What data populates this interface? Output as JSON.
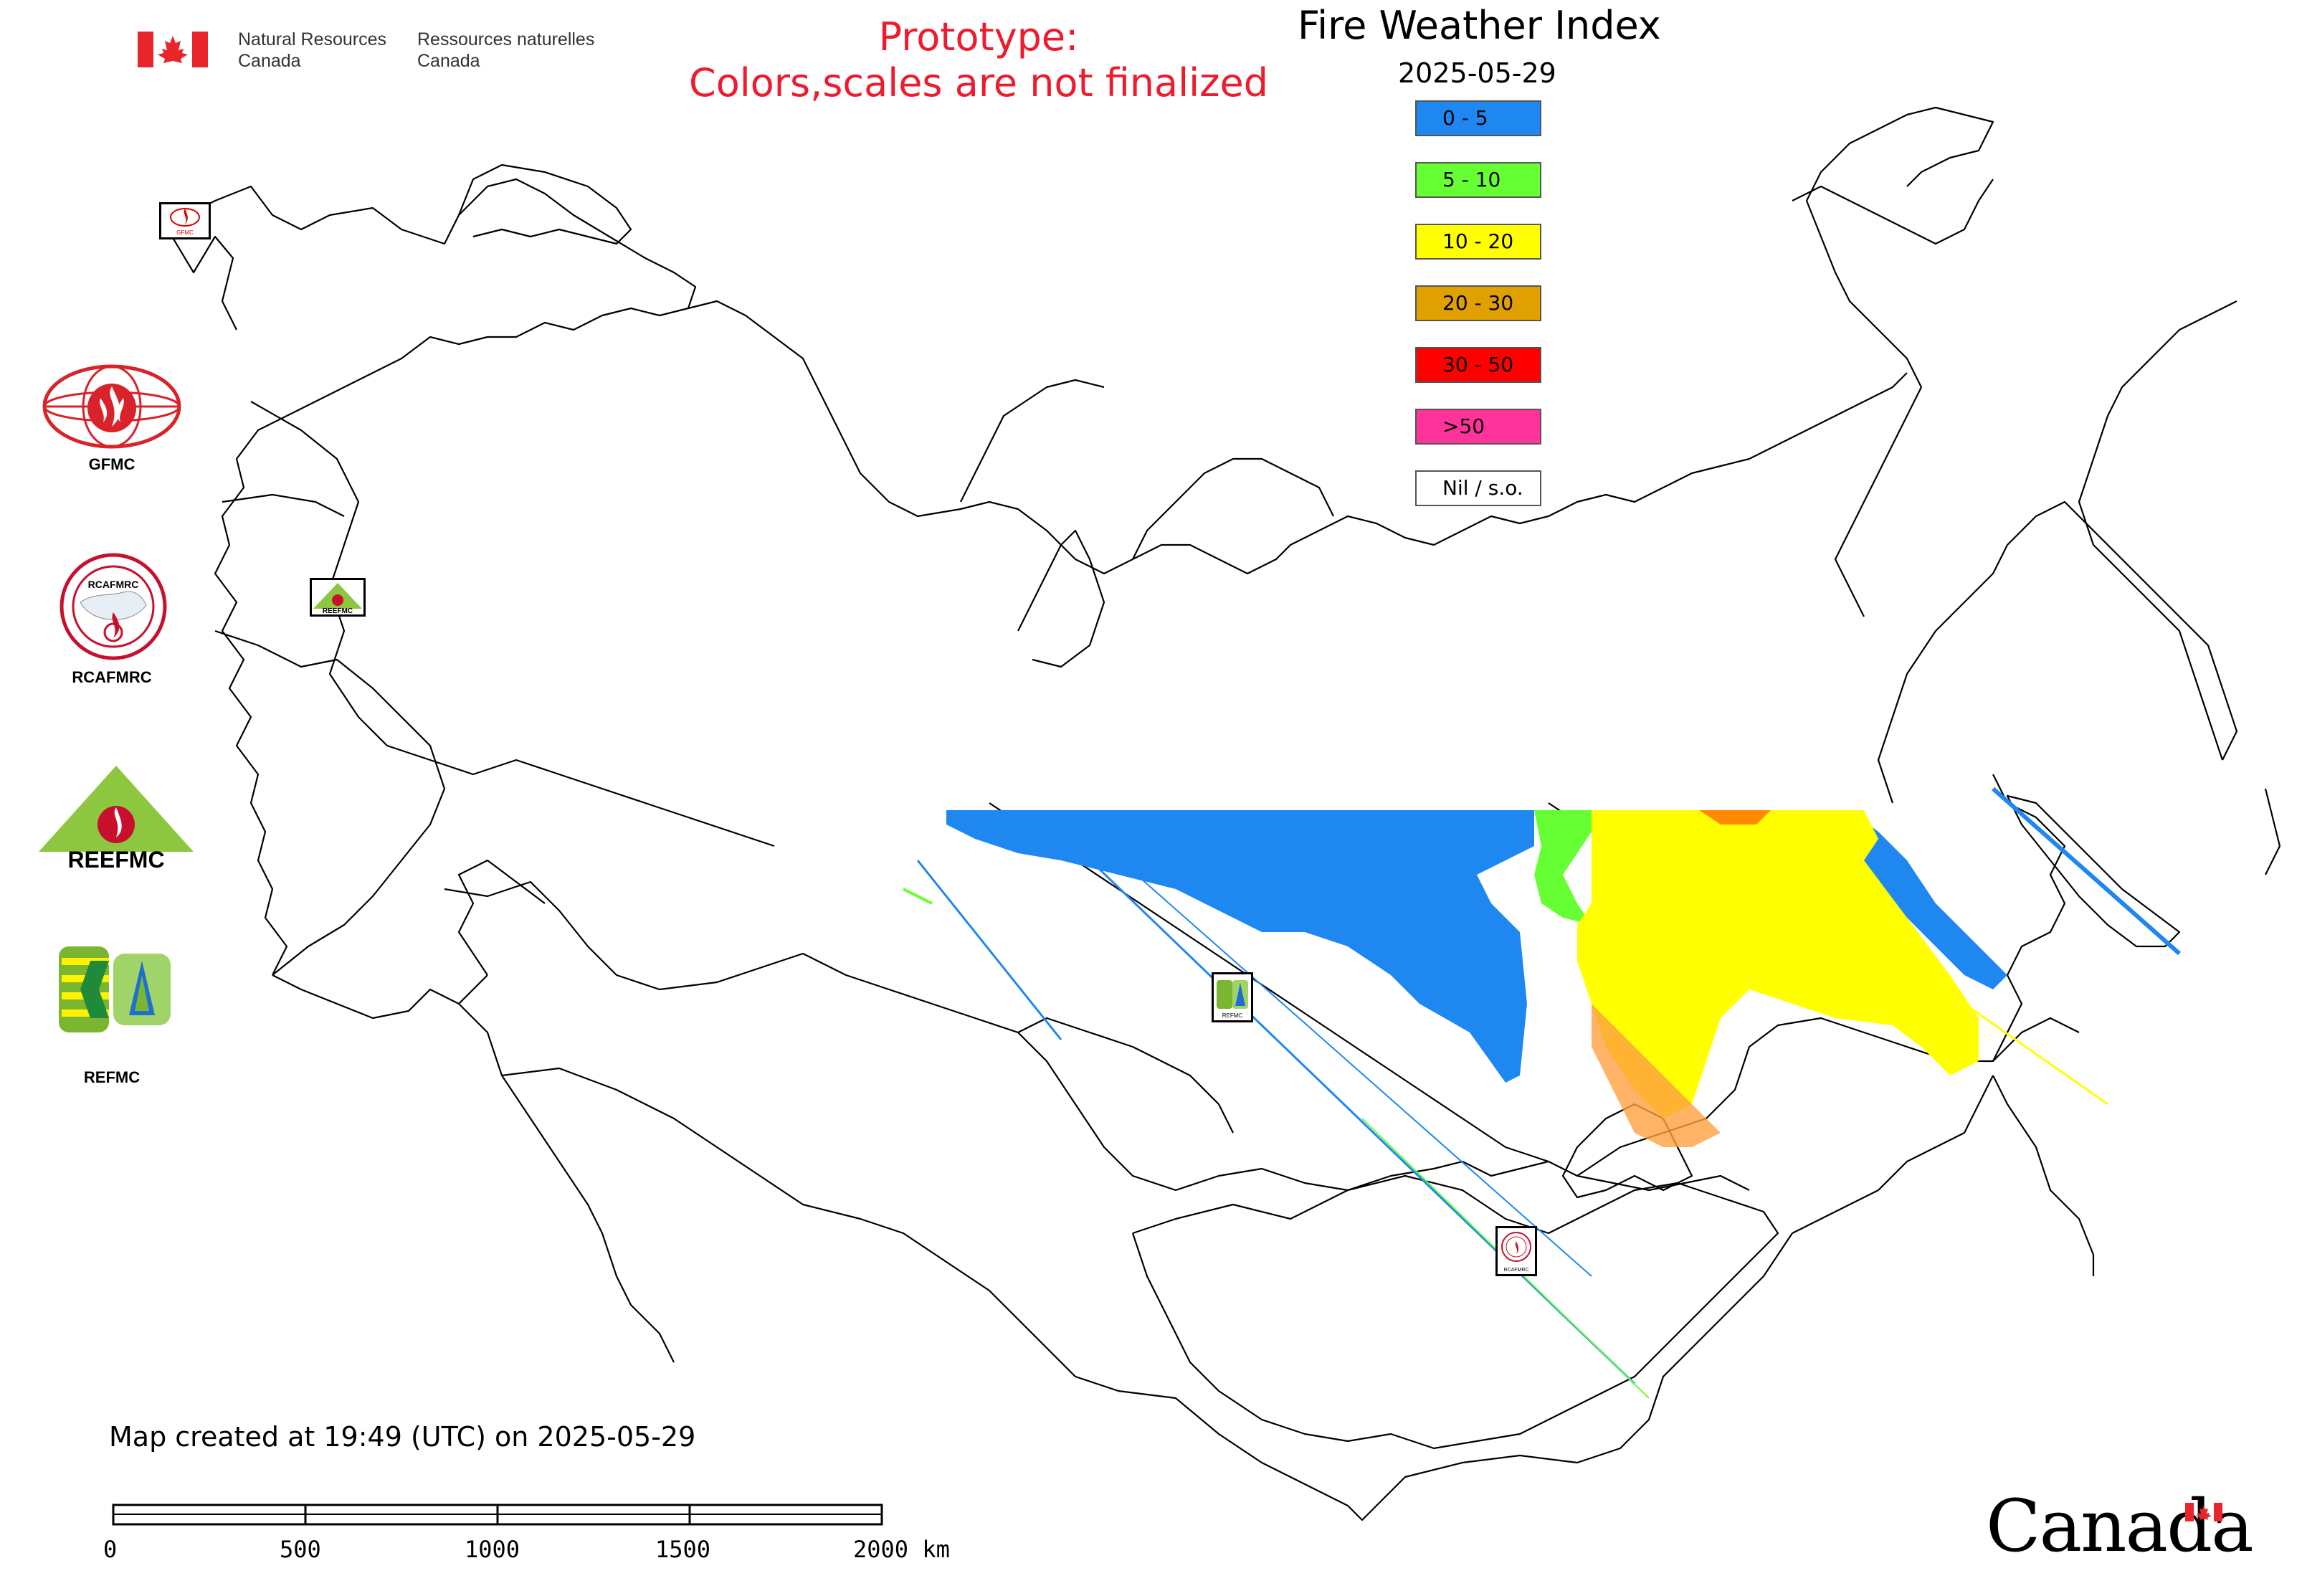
{
  "header": {
    "agency_en": "Natural Resources\nCanada",
    "agency_fr": "Ressources naturelles\nCanada",
    "prototype_line1": "Prototype:",
    "prototype_line2": "Colors,scales are not finalized"
  },
  "legend": {
    "title": "Fire Weather Index",
    "date": "2025-05-29",
    "classes": [
      {
        "label": "0 - 5",
        "color": "#1e88f0"
      },
      {
        "label": "5 - 10",
        "color": "#66ff33"
      },
      {
        "label": "10 - 20",
        "color": "#ffff00"
      },
      {
        "label": "20 - 30",
        "color": "#e0a000"
      },
      {
        "label": "30 - 50",
        "color": "#ff0000"
      },
      {
        "label": ">50",
        "color": "#ff3399"
      },
      {
        "label": "Nil / s.o.",
        "color": "#ffffff"
      }
    ]
  },
  "logos": {
    "gfmc": "GFMC",
    "rcafmrc": "RCAFMRC",
    "reefmc": "REEFMC",
    "refmc": "REFMC",
    "map_marker_gfmc": "GFMC",
    "map_marker_reefmc": "REEFMC",
    "map_marker_refmc": "REFMC",
    "map_marker_rcafmrc": "RCAFMRC",
    "rcafmrc_badge": "RCAFMRC"
  },
  "footer": {
    "created": "Map created at 19:49 (UTC) on 2025-05-29",
    "scale_labels": [
      "0",
      "500",
      "1000",
      "1500",
      "2000 km"
    ],
    "wordmark": "Canada"
  },
  "colors": {
    "prototype_text": "#ee1b2e",
    "flag_red": "#e8252b"
  }
}
